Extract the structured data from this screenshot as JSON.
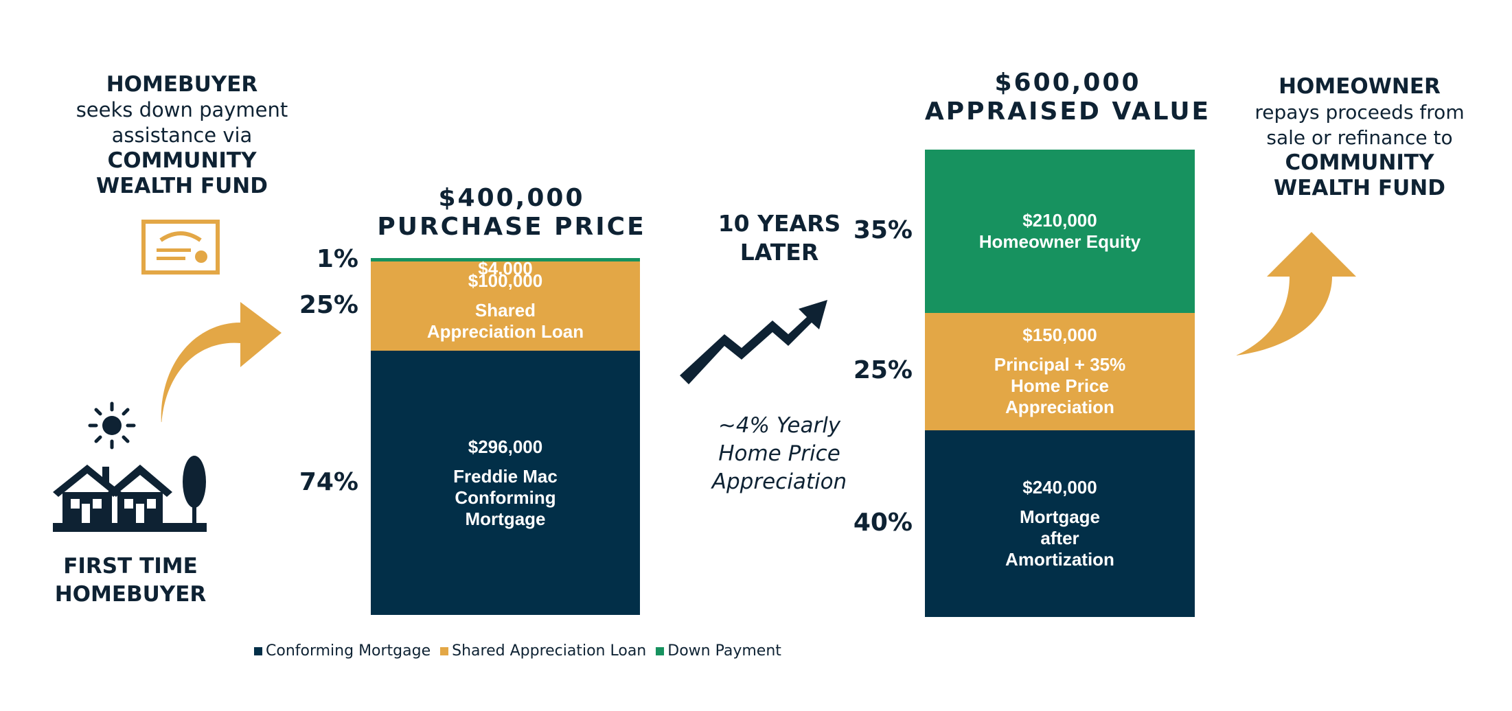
{
  "colors": {
    "navy": "#022f48",
    "gold": "#e3a746",
    "green": "#17925f",
    "dark_text": "#0e2233"
  },
  "left_panel": {
    "line1": "HOMEBUYER",
    "line2": "seeks down payment",
    "line3": "assistance via",
    "line4": "COMMUNITY",
    "line5": "WEALTH FUND",
    "footer_line1": "FIRST TIME",
    "footer_line2": "HOMEBUYER",
    "icons": [
      "certificate-icon",
      "curved-arrow-icon",
      "sun-icon",
      "houses-icon"
    ]
  },
  "middle": {
    "years_line1": "10 YEARS",
    "years_line2": "LATER",
    "appreciation_line1": "~4% Yearly",
    "appreciation_line2": "Home Price",
    "appreciation_line3": "Appreciation",
    "icons": [
      "trend-up-arrow-icon"
    ]
  },
  "right_panel": {
    "line1": "HOMEOWNER",
    "line2": "repays proceeds from",
    "line3": "sale or refinance to",
    "line4": "COMMUNITY",
    "line5": "WEALTH FUND",
    "icons": [
      "curved-arrow-icon"
    ]
  },
  "chart_data": [
    {
      "type": "bar",
      "stacked": true,
      "title_line1": "$400,000",
      "title_line2": "PURCHASE PRICE",
      "total": 400000,
      "segments": [
        {
          "series": "Conforming Mortgage",
          "value": 296000,
          "percent_label": "74%",
          "value_label": "$296,000",
          "label_lines": [
            "Freddie Mac",
            "Conforming",
            "Mortgage"
          ]
        },
        {
          "series": "Shared Appreciation Loan",
          "value": 100000,
          "percent_label": "25%",
          "value_label": "$100,000",
          "label_lines": [
            "Shared",
            "Appreciation Loan"
          ]
        },
        {
          "series": "Down Payment",
          "value": 4000,
          "percent_label": "1%",
          "value_label": "$4,000",
          "label_lines": []
        }
      ]
    },
    {
      "type": "bar",
      "stacked": true,
      "title_line1": "$600,000",
      "title_line2": "APPRAISED VALUE",
      "total": 600000,
      "segments": [
        {
          "series": "Conforming Mortgage",
          "value": 240000,
          "percent_label": "40%",
          "value_label": "$240,000",
          "label_lines": [
            "Mortgage",
            "after",
            "Amortization"
          ]
        },
        {
          "series": "Shared Appreciation Loan",
          "value": 150000,
          "percent_label": "25%",
          "value_label": "$150,000",
          "label_lines": [
            "Principal + 35%",
            "Home Price",
            "Appreciation"
          ]
        },
        {
          "series": "Down Payment",
          "value": 210000,
          "percent_label": "35%",
          "value_label": "$210,000",
          "label_lines": [
            "Homeowner Equity"
          ]
        }
      ]
    }
  ],
  "legend": [
    {
      "label": "Conforming Mortgage",
      "color": "#022f48"
    },
    {
      "label": "Shared Appreciation Loan",
      "color": "#e3a746"
    },
    {
      "label": "Down Payment",
      "color": "#17925f"
    }
  ]
}
